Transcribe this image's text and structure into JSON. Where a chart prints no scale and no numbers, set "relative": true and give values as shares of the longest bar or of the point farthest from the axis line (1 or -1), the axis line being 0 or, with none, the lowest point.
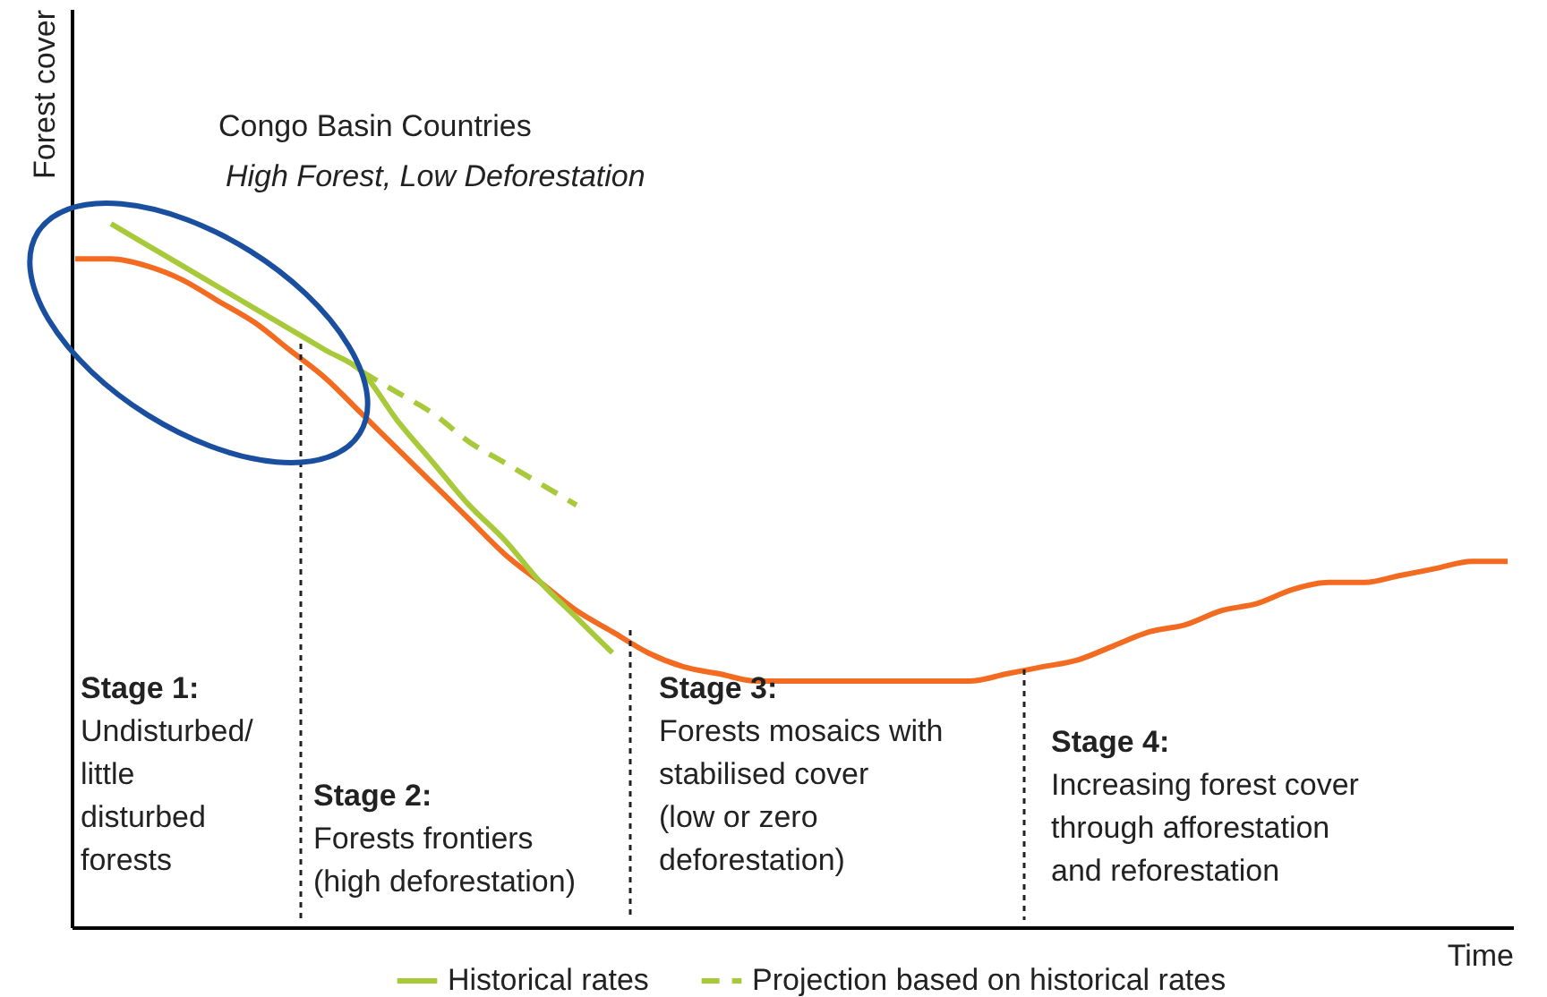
{
  "chart_data": {
    "type": "line",
    "relative": true,
    "xlabel": "Time",
    "ylabel": "Forest cover",
    "categories": [
      null,
      null,
      null,
      null,
      null,
      null,
      null,
      null,
      null,
      null,
      null,
      null,
      null,
      null,
      null,
      null,
      null,
      null,
      null,
      null,
      null,
      null,
      null,
      null,
      null,
      null,
      null,
      null,
      null,
      null,
      null,
      null,
      null,
      null,
      null,
      null,
      null,
      null,
      null,
      null,
      null
    ],
    "series": [
      {
        "color": "#f26b21",
        "values": [
          0.95,
          0.95,
          0.94,
          0.92,
          0.89,
          0.86,
          0.82,
          0.78,
          0.73,
          0.68,
          0.63,
          0.58,
          0.53,
          0.49,
          0.45,
          0.42,
          0.39,
          0.37,
          0.36,
          0.35,
          0.35,
          0.35,
          0.35,
          0.35,
          0.35,
          0.35,
          0.36,
          0.37,
          0.38,
          0.4,
          0.42,
          0.43,
          0.45,
          0.46,
          0.48,
          0.49,
          0.49,
          0.5,
          0.51,
          0.52,
          0.52
        ]
      },
      {
        "name": "Historical rates",
        "color": "#a8c93a",
        "line_style": "solid",
        "values": [
          null,
          1.0,
          0.97,
          0.94,
          0.91,
          0.88,
          0.85,
          0.82,
          0.79,
          0.72,
          0.66,
          0.6,
          0.55,
          0.49,
          0.44,
          0.39,
          null,
          null,
          null,
          null,
          null,
          null,
          null,
          null,
          null,
          null,
          null,
          null,
          null,
          null,
          null,
          null,
          null,
          null,
          null,
          null,
          null,
          null,
          null,
          null,
          null
        ]
      },
      {
        "name": "Projection based on historical rates",
        "color": "#a8c93a",
        "line_style": "dashed",
        "values": [
          null,
          null,
          null,
          null,
          null,
          null,
          null,
          null,
          0.79,
          0.76,
          0.73,
          0.69,
          0.66,
          0.63,
          0.6,
          null,
          null,
          null,
          null,
          null,
          null,
          null,
          null,
          null,
          null,
          null,
          null,
          null,
          null,
          null,
          null,
          null,
          null,
          null,
          null,
          null,
          null,
          null,
          null,
          null,
          null
        ]
      }
    ],
    "annotations": [
      "Congo Basin Countries",
      "High Forest, Low Deforestation",
      "Stage 1:\nUndisturbed/\nlittle\ndisturbed\nforests",
      "Stage 2:\nForests frontiers\n(high deforestation)",
      "Stage 3:\nForests mosaics with\nstabilised cover\n(low or zero\ndeforestation)",
      "Stage 4:\nIncreasing forest cover\nthrough afforestation\nand reforestation"
    ],
    "legend": "bottom",
    "grid": false,
    "marker": "none"
  }
}
